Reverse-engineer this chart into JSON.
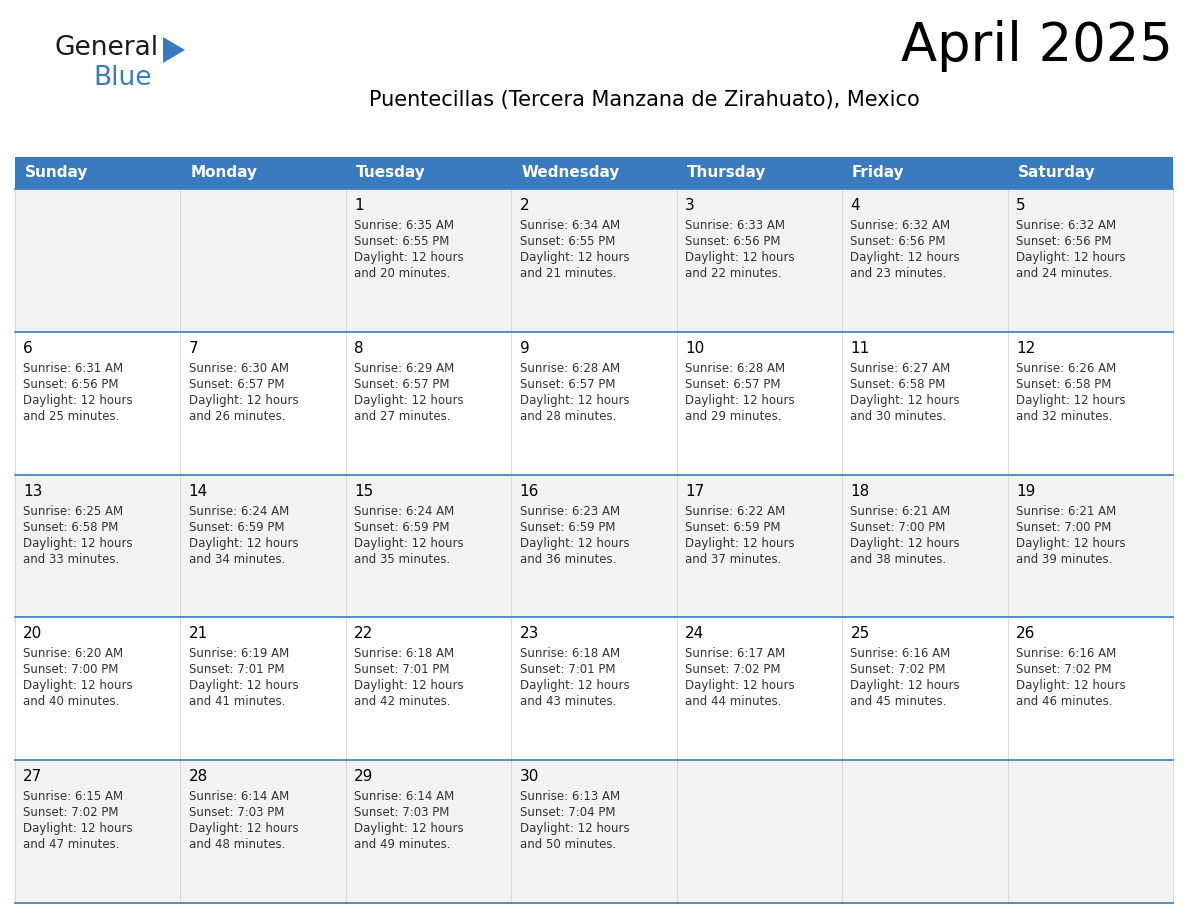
{
  "title": "April 2025",
  "subtitle": "Puentecillas (Tercera Manzana de Zirahuato), Mexico",
  "header_bg_color": "#3a7bbf",
  "header_text_color": "#ffffff",
  "cell_bg_colors": [
    "#f2f2f2",
    "#ffffff"
  ],
  "border_color": "#3a7bbf",
  "text_color": "#333333",
  "day_names": [
    "Sunday",
    "Monday",
    "Tuesday",
    "Wednesday",
    "Thursday",
    "Friday",
    "Saturday"
  ],
  "days": [
    {
      "day": null,
      "sunrise": null,
      "sunset": null,
      "daylight_min": null
    },
    {
      "day": null,
      "sunrise": null,
      "sunset": null,
      "daylight_min": null
    },
    {
      "day": 1,
      "sunrise": "6:35 AM",
      "sunset": "6:55 PM",
      "daylight_min": 20
    },
    {
      "day": 2,
      "sunrise": "6:34 AM",
      "sunset": "6:55 PM",
      "daylight_min": 21
    },
    {
      "day": 3,
      "sunrise": "6:33 AM",
      "sunset": "6:56 PM",
      "daylight_min": 22
    },
    {
      "day": 4,
      "sunrise": "6:32 AM",
      "sunset": "6:56 PM",
      "daylight_min": 23
    },
    {
      "day": 5,
      "sunrise": "6:32 AM",
      "sunset": "6:56 PM",
      "daylight_min": 24
    },
    {
      "day": 6,
      "sunrise": "6:31 AM",
      "sunset": "6:56 PM",
      "daylight_min": 25
    },
    {
      "day": 7,
      "sunrise": "6:30 AM",
      "sunset": "6:57 PM",
      "daylight_min": 26
    },
    {
      "day": 8,
      "sunrise": "6:29 AM",
      "sunset": "6:57 PM",
      "daylight_min": 27
    },
    {
      "day": 9,
      "sunrise": "6:28 AM",
      "sunset": "6:57 PM",
      "daylight_min": 28
    },
    {
      "day": 10,
      "sunrise": "6:28 AM",
      "sunset": "6:57 PM",
      "daylight_min": 29
    },
    {
      "day": 11,
      "sunrise": "6:27 AM",
      "sunset": "6:58 PM",
      "daylight_min": 30
    },
    {
      "day": 12,
      "sunrise": "6:26 AM",
      "sunset": "6:58 PM",
      "daylight_min": 32
    },
    {
      "day": 13,
      "sunrise": "6:25 AM",
      "sunset": "6:58 PM",
      "daylight_min": 33
    },
    {
      "day": 14,
      "sunrise": "6:24 AM",
      "sunset": "6:59 PM",
      "daylight_min": 34
    },
    {
      "day": 15,
      "sunrise": "6:24 AM",
      "sunset": "6:59 PM",
      "daylight_min": 35
    },
    {
      "day": 16,
      "sunrise": "6:23 AM",
      "sunset": "6:59 PM",
      "daylight_min": 36
    },
    {
      "day": 17,
      "sunrise": "6:22 AM",
      "sunset": "6:59 PM",
      "daylight_min": 37
    },
    {
      "day": 18,
      "sunrise": "6:21 AM",
      "sunset": "7:00 PM",
      "daylight_min": 38
    },
    {
      "day": 19,
      "sunrise": "6:21 AM",
      "sunset": "7:00 PM",
      "daylight_min": 39
    },
    {
      "day": 20,
      "sunrise": "6:20 AM",
      "sunset": "7:00 PM",
      "daylight_min": 40
    },
    {
      "day": 21,
      "sunrise": "6:19 AM",
      "sunset": "7:01 PM",
      "daylight_min": 41
    },
    {
      "day": 22,
      "sunrise": "6:18 AM",
      "sunset": "7:01 PM",
      "daylight_min": 42
    },
    {
      "day": 23,
      "sunrise": "6:18 AM",
      "sunset": "7:01 PM",
      "daylight_min": 43
    },
    {
      "day": 24,
      "sunrise": "6:17 AM",
      "sunset": "7:02 PM",
      "daylight_min": 44
    },
    {
      "day": 25,
      "sunrise": "6:16 AM",
      "sunset": "7:02 PM",
      "daylight_min": 45
    },
    {
      "day": 26,
      "sunrise": "6:16 AM",
      "sunset": "7:02 PM",
      "daylight_min": 46
    },
    {
      "day": 27,
      "sunrise": "6:15 AM",
      "sunset": "7:02 PM",
      "daylight_min": 47
    },
    {
      "day": 28,
      "sunrise": "6:14 AM",
      "sunset": "7:03 PM",
      "daylight_min": 48
    },
    {
      "day": 29,
      "sunrise": "6:14 AM",
      "sunset": "7:03 PM",
      "daylight_min": 49
    },
    {
      "day": 30,
      "sunrise": "6:13 AM",
      "sunset": "7:04 PM",
      "daylight_min": 50
    },
    {
      "day": null,
      "sunrise": null,
      "sunset": null,
      "daylight_min": null
    },
    {
      "day": null,
      "sunrise": null,
      "sunset": null,
      "daylight_min": null
    },
    {
      "day": null,
      "sunrise": null,
      "sunset": null,
      "daylight_min": null
    },
    {
      "day": null,
      "sunrise": null,
      "sunset": null,
      "daylight_min": null
    }
  ],
  "logo_general_color": "#1a1a1a",
  "logo_blue_color": "#3a7bbf",
  "logo_triangle_color": "#3a7bbf"
}
